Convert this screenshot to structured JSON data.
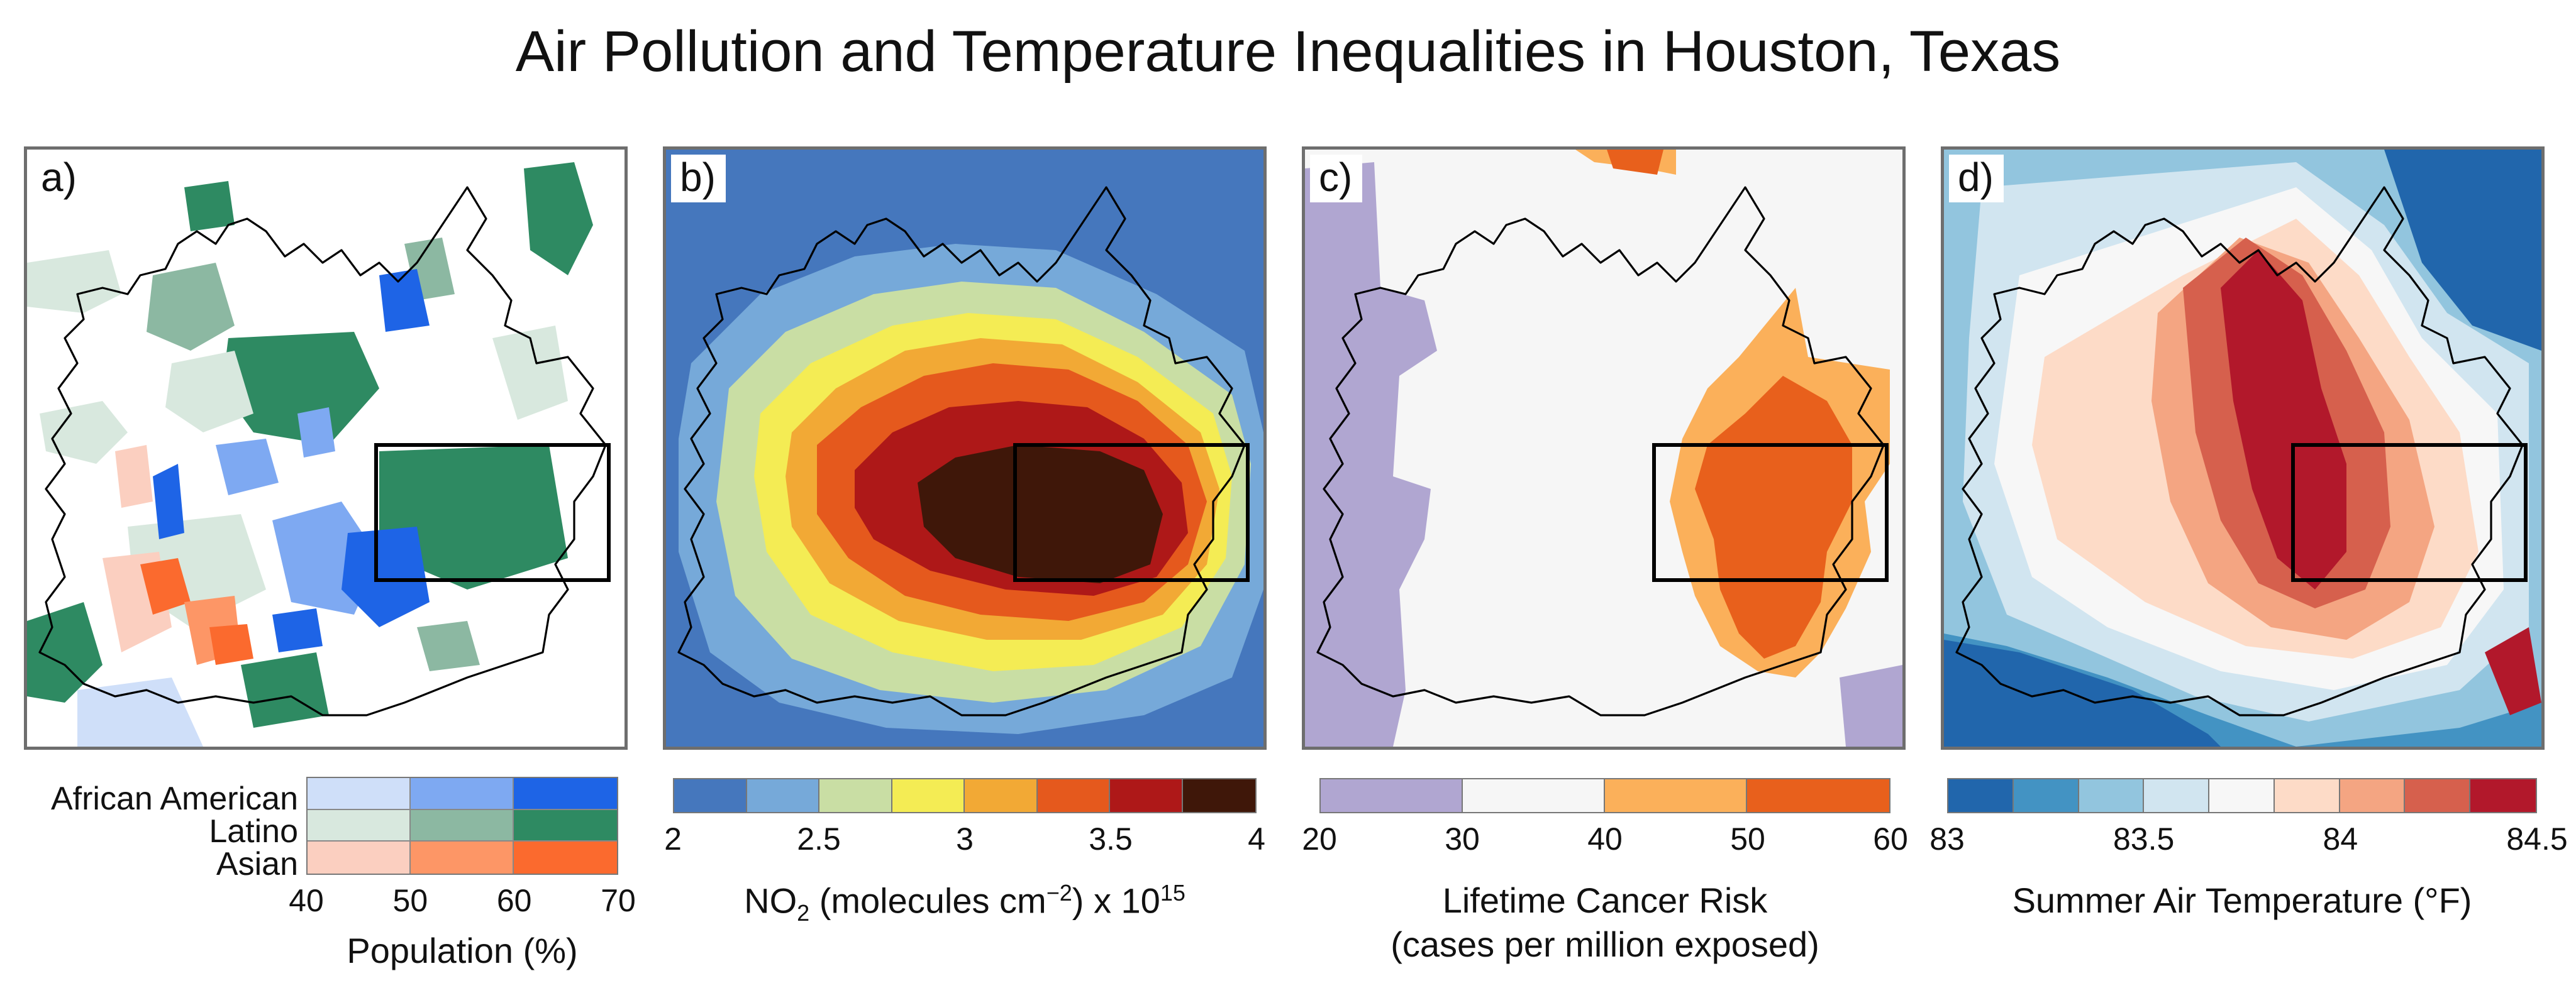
{
  "title": "Air Pollution and Temperature Inequalities in Houston, Texas",
  "colors": {
    "no2": [
      "#4577bd",
      "#76a9d9",
      "#c9dea4",
      "#f4ec54",
      "#f2a935",
      "#e5591d",
      "#ae1818",
      "#3f1709"
    ],
    "cancer": [
      "#b0a6d1",
      "#f6f6f6",
      "#fbb05a",
      "#e8601c"
    ],
    "temp": [
      "#2166ac",
      "#4393c3",
      "#92c5de",
      "#d1e5f0",
      "#f7f7f7",
      "#fddbc7",
      "#f4a582",
      "#d6604d",
      "#b2182b"
    ],
    "demo": {
      "African American": [
        "#cfdff9",
        "#7ea9f2",
        "#1e64e6"
      ],
      "Latino": [
        "#d8e8de",
        "#8cb8a2",
        "#2e8a62"
      ],
      "Asian": [
        "#fbcfc0",
        "#fd9666",
        "#fb6a2e"
      ]
    }
  },
  "panels": [
    {
      "label": "a)"
    },
    {
      "label": "b)"
    },
    {
      "label": "c)"
    },
    {
      "label": "d)"
    }
  ],
  "chart_data": [
    {
      "type": "heatmap",
      "panel": "a)",
      "legend_rows": [
        "African American",
        "Latino",
        "Asian"
      ],
      "bins": [
        40,
        50,
        60,
        70
      ],
      "ticks": [
        "40",
        "50",
        "60",
        "70"
      ],
      "xlabel": "Population (%)"
    },
    {
      "type": "heatmap",
      "panel": "b)",
      "bins": [
        2,
        2.25,
        2.5,
        2.75,
        3,
        3.25,
        3.5,
        3.75,
        4
      ],
      "ticks": [
        "2",
        "2.5",
        "3",
        "3.5",
        "4"
      ],
      "xlabel_parts": {
        "pre": "NO",
        "sub": "2",
        "mid": " (molecules cm",
        "sup1": "−2",
        "post": ") x 10",
        "sup2": "15"
      }
    },
    {
      "type": "heatmap",
      "panel": "c)",
      "bins": [
        20,
        30,
        40,
        50,
        60
      ],
      "ticks": [
        "20",
        "30",
        "40",
        "50",
        "60"
      ],
      "xlabel_line1": "Lifetime Cancer Risk",
      "xlabel_line2": "(cases per million exposed)"
    },
    {
      "type": "heatmap",
      "panel": "d)",
      "bins": [
        83,
        83.1667,
        83.3333,
        83.5,
        83.6667,
        83.8333,
        84,
        84.1667,
        84.3333,
        84.5
      ],
      "ticks": [
        "83",
        "83.5",
        "84",
        "84.5"
      ],
      "xlabel": "Summer Air Temperature (°F)"
    }
  ]
}
